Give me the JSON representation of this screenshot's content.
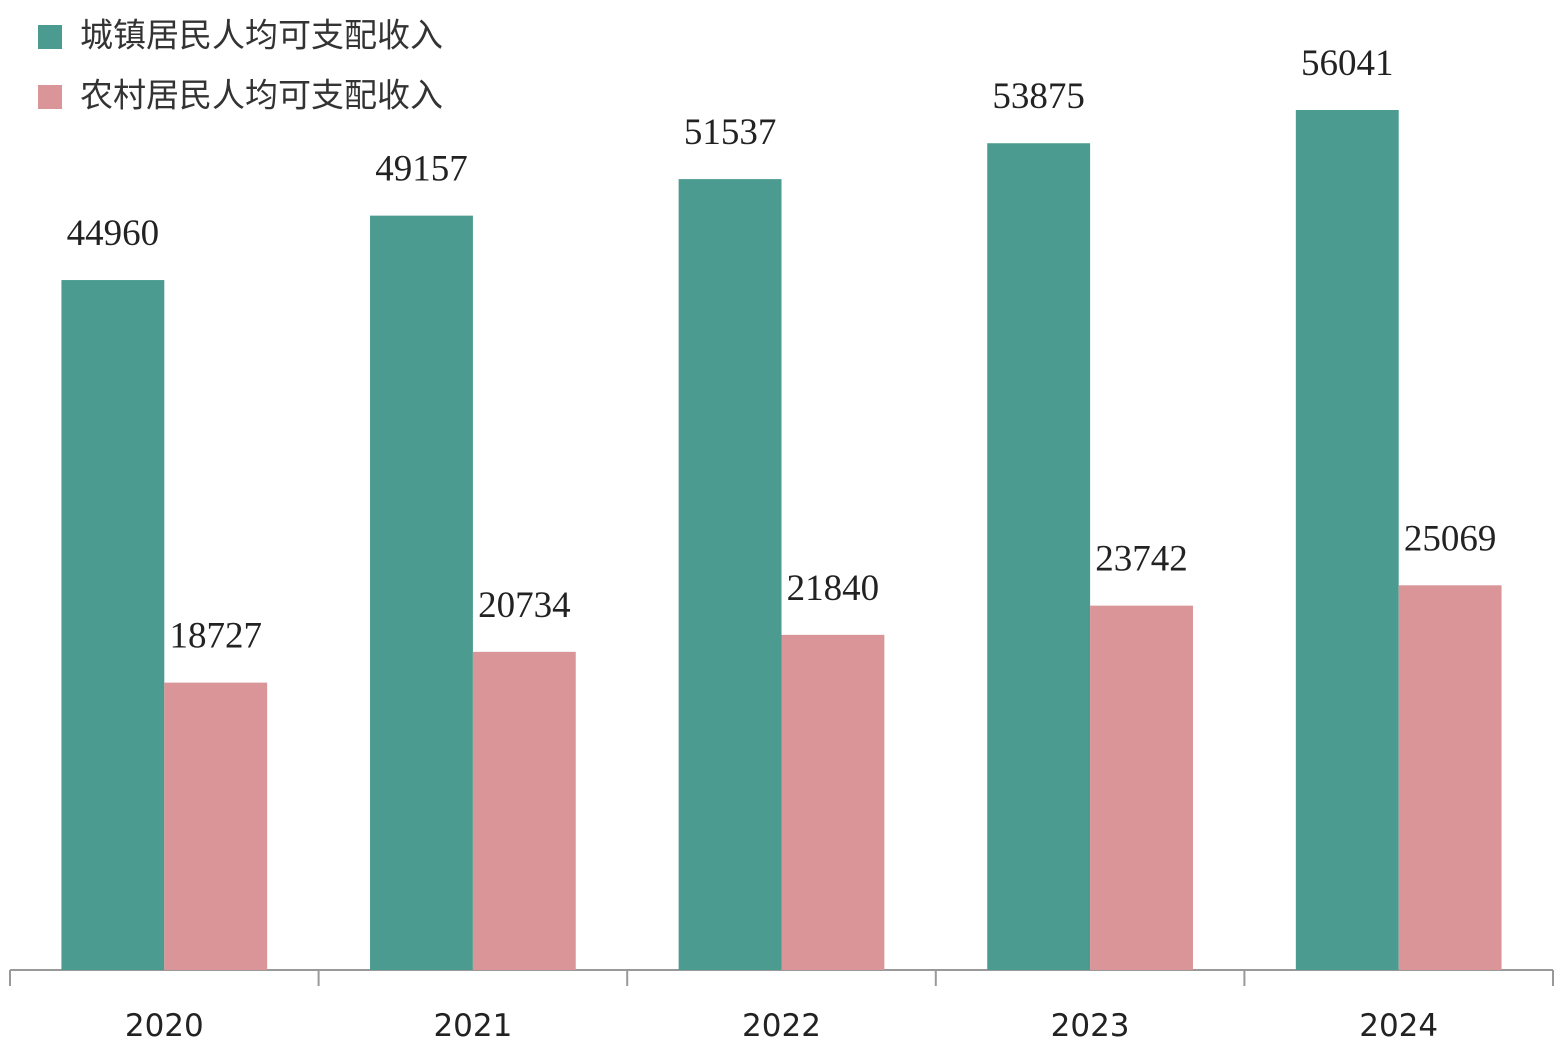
{
  "chart_data": {
    "type": "bar",
    "categories": [
      "2020",
      "2021",
      "2022",
      "2023",
      "2024"
    ],
    "series": [
      {
        "name": "城镇居民人均可支配收入",
        "color": "#4b9b90",
        "values": [
          44960,
          49157,
          51537,
          53875,
          56041
        ]
      },
      {
        "name": "农村居民人均可支配收入",
        "color": "#d99597",
        "values": [
          18727,
          20734,
          21840,
          23742,
          25069
        ]
      }
    ]
  }
}
